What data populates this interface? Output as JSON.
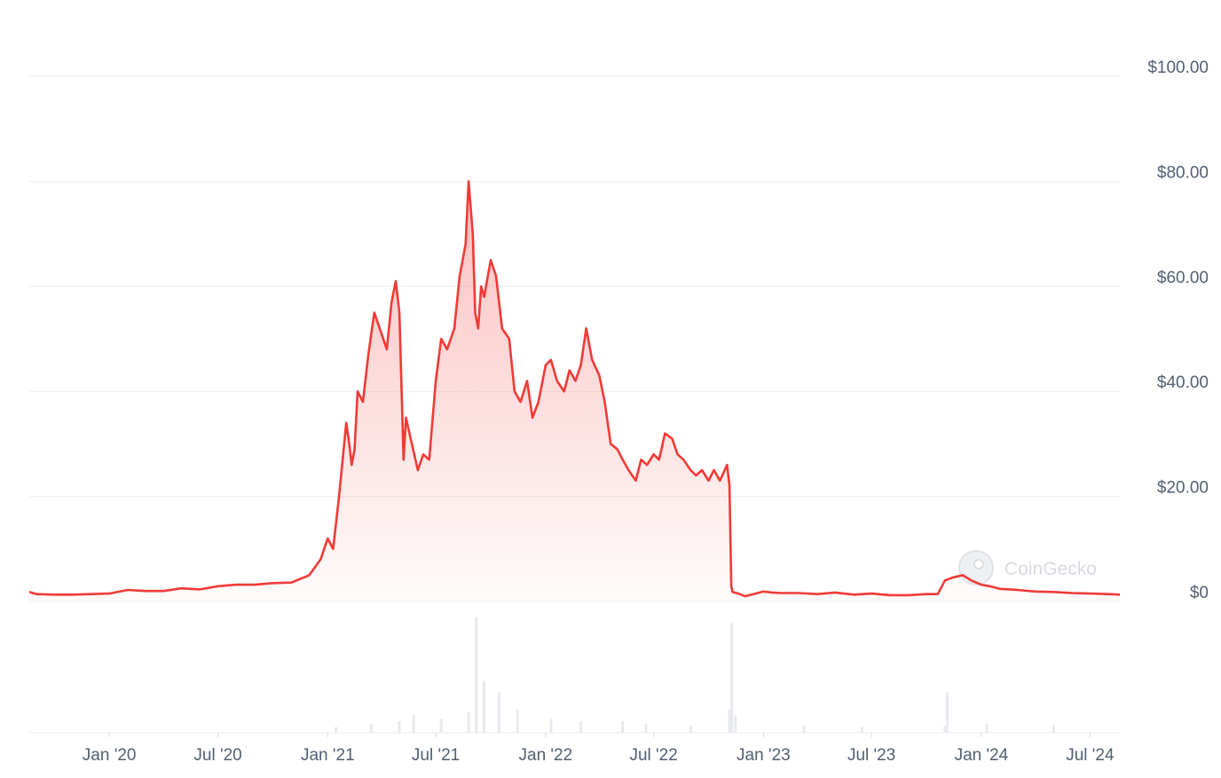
{
  "colors": {
    "line": "#f03a36",
    "grid": "#eceef2",
    "volume": "#e7e9ee",
    "tick_text": "#525f73"
  },
  "watermark": {
    "text": "CoinGecko"
  },
  "chart_data": {
    "type": "area",
    "title": "",
    "xlabel": "",
    "ylabel": "",
    "grid": true,
    "ylim": [
      0,
      100
    ],
    "xlim": [
      "2019-08-20",
      "2024-08-20"
    ],
    "y_ticks": [
      "$0",
      "$20.00",
      "$40.00",
      "$60.00",
      "$80.00",
      "$100.00"
    ],
    "y_tick_values": [
      0,
      20,
      40,
      60,
      80,
      100
    ],
    "x_ticks": [
      "Jan '20",
      "Jul '20",
      "Jan '21",
      "Jul '21",
      "Jan '22",
      "Jul '22",
      "Jan '23",
      "Jul '23",
      "Jan '24",
      "Jul '24"
    ],
    "x_tick_dates": [
      "2020-01-01",
      "2020-07-01",
      "2021-01-01",
      "2021-07-01",
      "2022-01-01",
      "2022-07-01",
      "2023-01-01",
      "2023-07-01",
      "2024-01-01",
      "2024-07-01"
    ],
    "series": [
      {
        "x": [
          "2019-08-20",
          "2019-09-01",
          "2019-10-01",
          "2019-11-01",
          "2019-12-01",
          "2020-01-01",
          "2020-02-01",
          "2020-03-01",
          "2020-04-01",
          "2020-05-01",
          "2020-06-01",
          "2020-07-01",
          "2020-08-01",
          "2020-09-01",
          "2020-10-01",
          "2020-11-01",
          "2020-12-01",
          "2020-12-20",
          "2021-01-01",
          "2021-01-10",
          "2021-01-20",
          "2021-02-01",
          "2021-02-06",
          "2021-02-10",
          "2021-02-15",
          "2021-02-20",
          "2021-03-01",
          "2021-03-10",
          "2021-03-20",
          "2021-04-01",
          "2021-04-10",
          "2021-04-18",
          "2021-04-25",
          "2021-05-01",
          "2021-05-08",
          "2021-05-12",
          "2021-05-20",
          "2021-06-01",
          "2021-06-10",
          "2021-06-20",
          "2021-07-01",
          "2021-07-10",
          "2021-07-20",
          "2021-08-01",
          "2021-08-10",
          "2021-08-20",
          "2021-08-25",
          "2021-09-01",
          "2021-09-05",
          "2021-09-10",
          "2021-09-15",
          "2021-09-20",
          "2021-10-01",
          "2021-10-10",
          "2021-10-20",
          "2021-11-01",
          "2021-11-10",
          "2021-11-20",
          "2021-12-01",
          "2021-12-10",
          "2021-12-20",
          "2022-01-01",
          "2022-01-10",
          "2022-01-20",
          "2022-02-01",
          "2022-02-10",
          "2022-02-20",
          "2022-03-01",
          "2022-03-10",
          "2022-03-20",
          "2022-04-01",
          "2022-04-10",
          "2022-04-20",
          "2022-05-01",
          "2022-05-10",
          "2022-05-20",
          "2022-06-01",
          "2022-06-10",
          "2022-06-20",
          "2022-07-01",
          "2022-07-10",
          "2022-07-20",
          "2022-08-01",
          "2022-08-10",
          "2022-08-20",
          "2022-09-01",
          "2022-09-10",
          "2022-09-20",
          "2022-10-01",
          "2022-10-10",
          "2022-10-20",
          "2022-11-01",
          "2022-11-05",
          "2022-11-08",
          "2022-11-10",
          "2022-11-20",
          "2022-12-01",
          "2022-12-15",
          "2023-01-01",
          "2023-01-15",
          "2023-02-01",
          "2023-03-01",
          "2023-04-01",
          "2023-05-01",
          "2023-06-01",
          "2023-07-01",
          "2023-08-01",
          "2023-09-01",
          "2023-10-01",
          "2023-10-20",
          "2023-11-01",
          "2023-11-15",
          "2023-12-01",
          "2023-12-15",
          "2024-01-01",
          "2024-01-15",
          "2024-02-01",
          "2024-03-01",
          "2024-04-01",
          "2024-05-01",
          "2024-06-01",
          "2024-07-01",
          "2024-08-01",
          "2024-08-20"
        ],
        "y": [
          1.8,
          1.4,
          1.3,
          1.3,
          1.4,
          1.5,
          2.2,
          2.0,
          2.0,
          2.5,
          2.3,
          2.9,
          3.2,
          3.2,
          3.5,
          3.6,
          5.0,
          8.0,
          12.0,
          10.0,
          20.0,
          34.0,
          30.0,
          26.0,
          29.0,
          40.0,
          38.0,
          47.0,
          55.0,
          51.0,
          48.0,
          57.0,
          61.0,
          55.0,
          27.0,
          35.0,
          31.0,
          25.0,
          28.0,
          27.0,
          42.0,
          50.0,
          48.0,
          52.0,
          62.0,
          68.0,
          80.0,
          70.0,
          55.0,
          52.0,
          60.0,
          58.0,
          65.0,
          62.0,
          52.0,
          50.0,
          40.0,
          38.0,
          42.0,
          35.0,
          38.0,
          45.0,
          46.0,
          42.0,
          40.0,
          44.0,
          42.0,
          45.0,
          52.0,
          46.0,
          43.0,
          38.0,
          30.0,
          29.0,
          27.0,
          25.0,
          23.0,
          27.0,
          26.0,
          28.0,
          27.0,
          32.0,
          31.0,
          28.0,
          27.0,
          25.0,
          24.0,
          25.0,
          23.0,
          25.0,
          23.0,
          26.0,
          22.0,
          3.0,
          1.8,
          1.5,
          1.0,
          1.4,
          1.9,
          1.7,
          1.6,
          1.6,
          1.4,
          1.7,
          1.3,
          1.5,
          1.2,
          1.2,
          1.4,
          1.4,
          4.0,
          4.6,
          5.0,
          4.0,
          3.2,
          2.9,
          2.4,
          2.2,
          1.9,
          1.8,
          1.6,
          1.5,
          1.4,
          1.3
        ]
      }
    ],
    "volume": {
      "x": [
        "2021-01-15",
        "2021-03-15",
        "2021-05-01",
        "2021-05-25",
        "2021-07-10",
        "2021-08-25",
        "2021-09-07",
        "2021-09-20",
        "2021-10-15",
        "2021-11-15",
        "2022-01-10",
        "2022-03-01",
        "2022-05-10",
        "2022-06-18",
        "2022-09-01",
        "2022-11-05",
        "2022-11-09",
        "2022-11-15",
        "2023-03-10",
        "2023-06-15",
        "2023-11-01",
        "2023-11-05",
        "2024-01-10",
        "2024-05-01"
      ],
      "y": [
        0.05,
        0.08,
        0.1,
        0.16,
        0.12,
        0.18,
        1.0,
        0.45,
        0.35,
        0.2,
        0.12,
        0.1,
        0.1,
        0.08,
        0.06,
        0.2,
        0.95,
        0.15,
        0.07,
        0.05,
        0.06,
        0.35,
        0.08,
        0.07
      ]
    }
  }
}
